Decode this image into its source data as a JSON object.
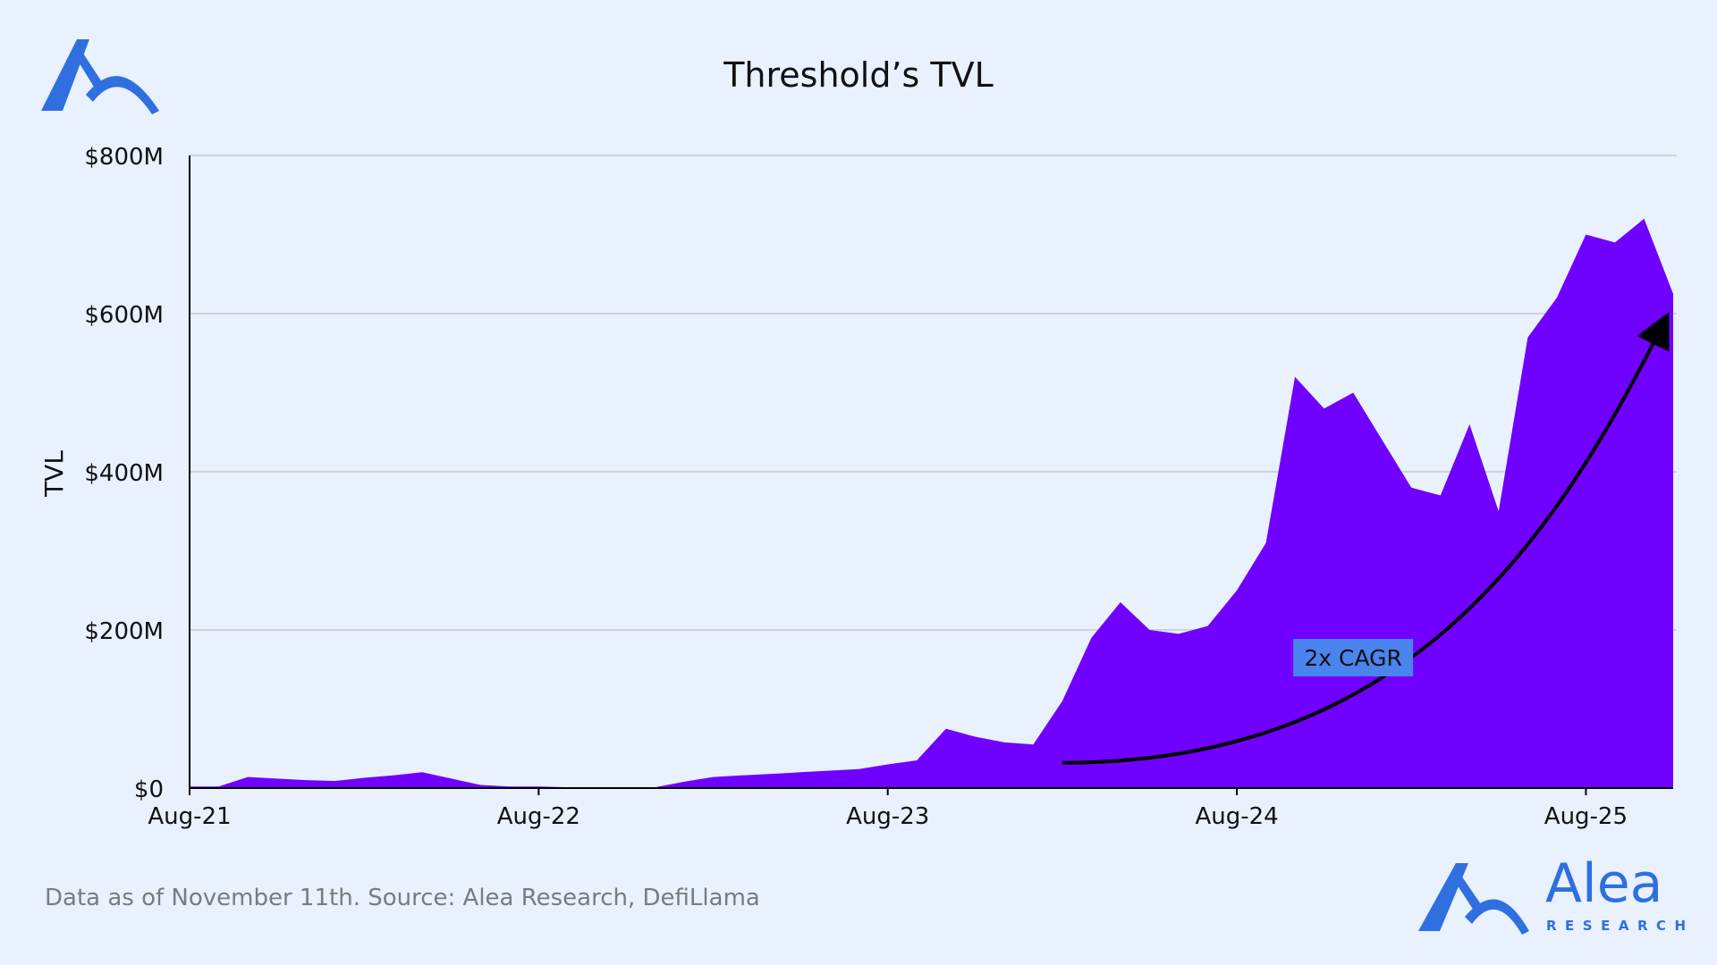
{
  "brand": {
    "name": "Alea",
    "sub": "RESEARCH",
    "color": "#2f6fe0"
  },
  "footer": {
    "note": "Data as of November 11th. Source: Alea Research, DefiLlama"
  },
  "chart_data": {
    "type": "area",
    "title": "Threshold’s TVL",
    "xlabel": "",
    "ylabel": "TVL",
    "ylim": [
      0,
      800
    ],
    "y_unit": "$M",
    "yticks": [
      {
        "value": 0,
        "label": "$0"
      },
      {
        "value": 200,
        "label": "$200M"
      },
      {
        "value": 400,
        "label": "$400M"
      },
      {
        "value": 600,
        "label": "$600M"
      },
      {
        "value": 800,
        "label": "$800M"
      }
    ],
    "xlim": [
      "2021-08",
      "2025-11"
    ],
    "xticks": [
      {
        "value": "2021-08",
        "label": "Aug-21"
      },
      {
        "value": "2022-08",
        "label": "Aug-22"
      },
      {
        "value": "2023-08",
        "label": "Aug-23"
      },
      {
        "value": "2024-08",
        "label": "Aug-24"
      },
      {
        "value": "2025-08",
        "label": "Aug-25"
      }
    ],
    "grid": "horizontal",
    "fill_color": "#7000ff",
    "series": [
      {
        "x": [
          "2021-08",
          "2021-09",
          "2021-10",
          "2021-11",
          "2021-12",
          "2022-01",
          "2022-02",
          "2022-03",
          "2022-04",
          "2022-05",
          "2022-06",
          "2022-07",
          "2022-08",
          "2022-09",
          "2022-10",
          "2022-11",
          "2022-12",
          "2023-01",
          "2023-02",
          "2023-03",
          "2023-04",
          "2023-05",
          "2023-06",
          "2023-07",
          "2023-08",
          "2023-09",
          "2023-10",
          "2023-11",
          "2023-12",
          "2024-01",
          "2024-02",
          "2024-03",
          "2024-04",
          "2024-05",
          "2024-06",
          "2024-07",
          "2024-08",
          "2024-09",
          "2024-10",
          "2024-11",
          "2024-12",
          "2025-01",
          "2025-02",
          "2025-03",
          "2025-04",
          "2025-05",
          "2025-06",
          "2025-07",
          "2025-08",
          "2025-09",
          "2025-10",
          "2025-11"
        ],
        "values": [
          2,
          2,
          14,
          12,
          10,
          9,
          13,
          16,
          20,
          12,
          4,
          2,
          2,
          1,
          1,
          1,
          1,
          8,
          14,
          16,
          18,
          20,
          22,
          24,
          30,
          35,
          75,
          65,
          58,
          55,
          110,
          190,
          235,
          200,
          195,
          205,
          250,
          310,
          520,
          480,
          500,
          440,
          380,
          370,
          460,
          350,
          570,
          620,
          700,
          690,
          720,
          625
        ]
      }
    ],
    "annotations": [
      {
        "text": "2x CAGR",
        "x": "2024-12",
        "y": 165,
        "bg": "#4a84ef"
      }
    ],
    "trend_arrow": {
      "from": {
        "x": "2024-02",
        "y": 32
      },
      "to": {
        "x": "2025-11",
        "y": 590
      }
    }
  }
}
